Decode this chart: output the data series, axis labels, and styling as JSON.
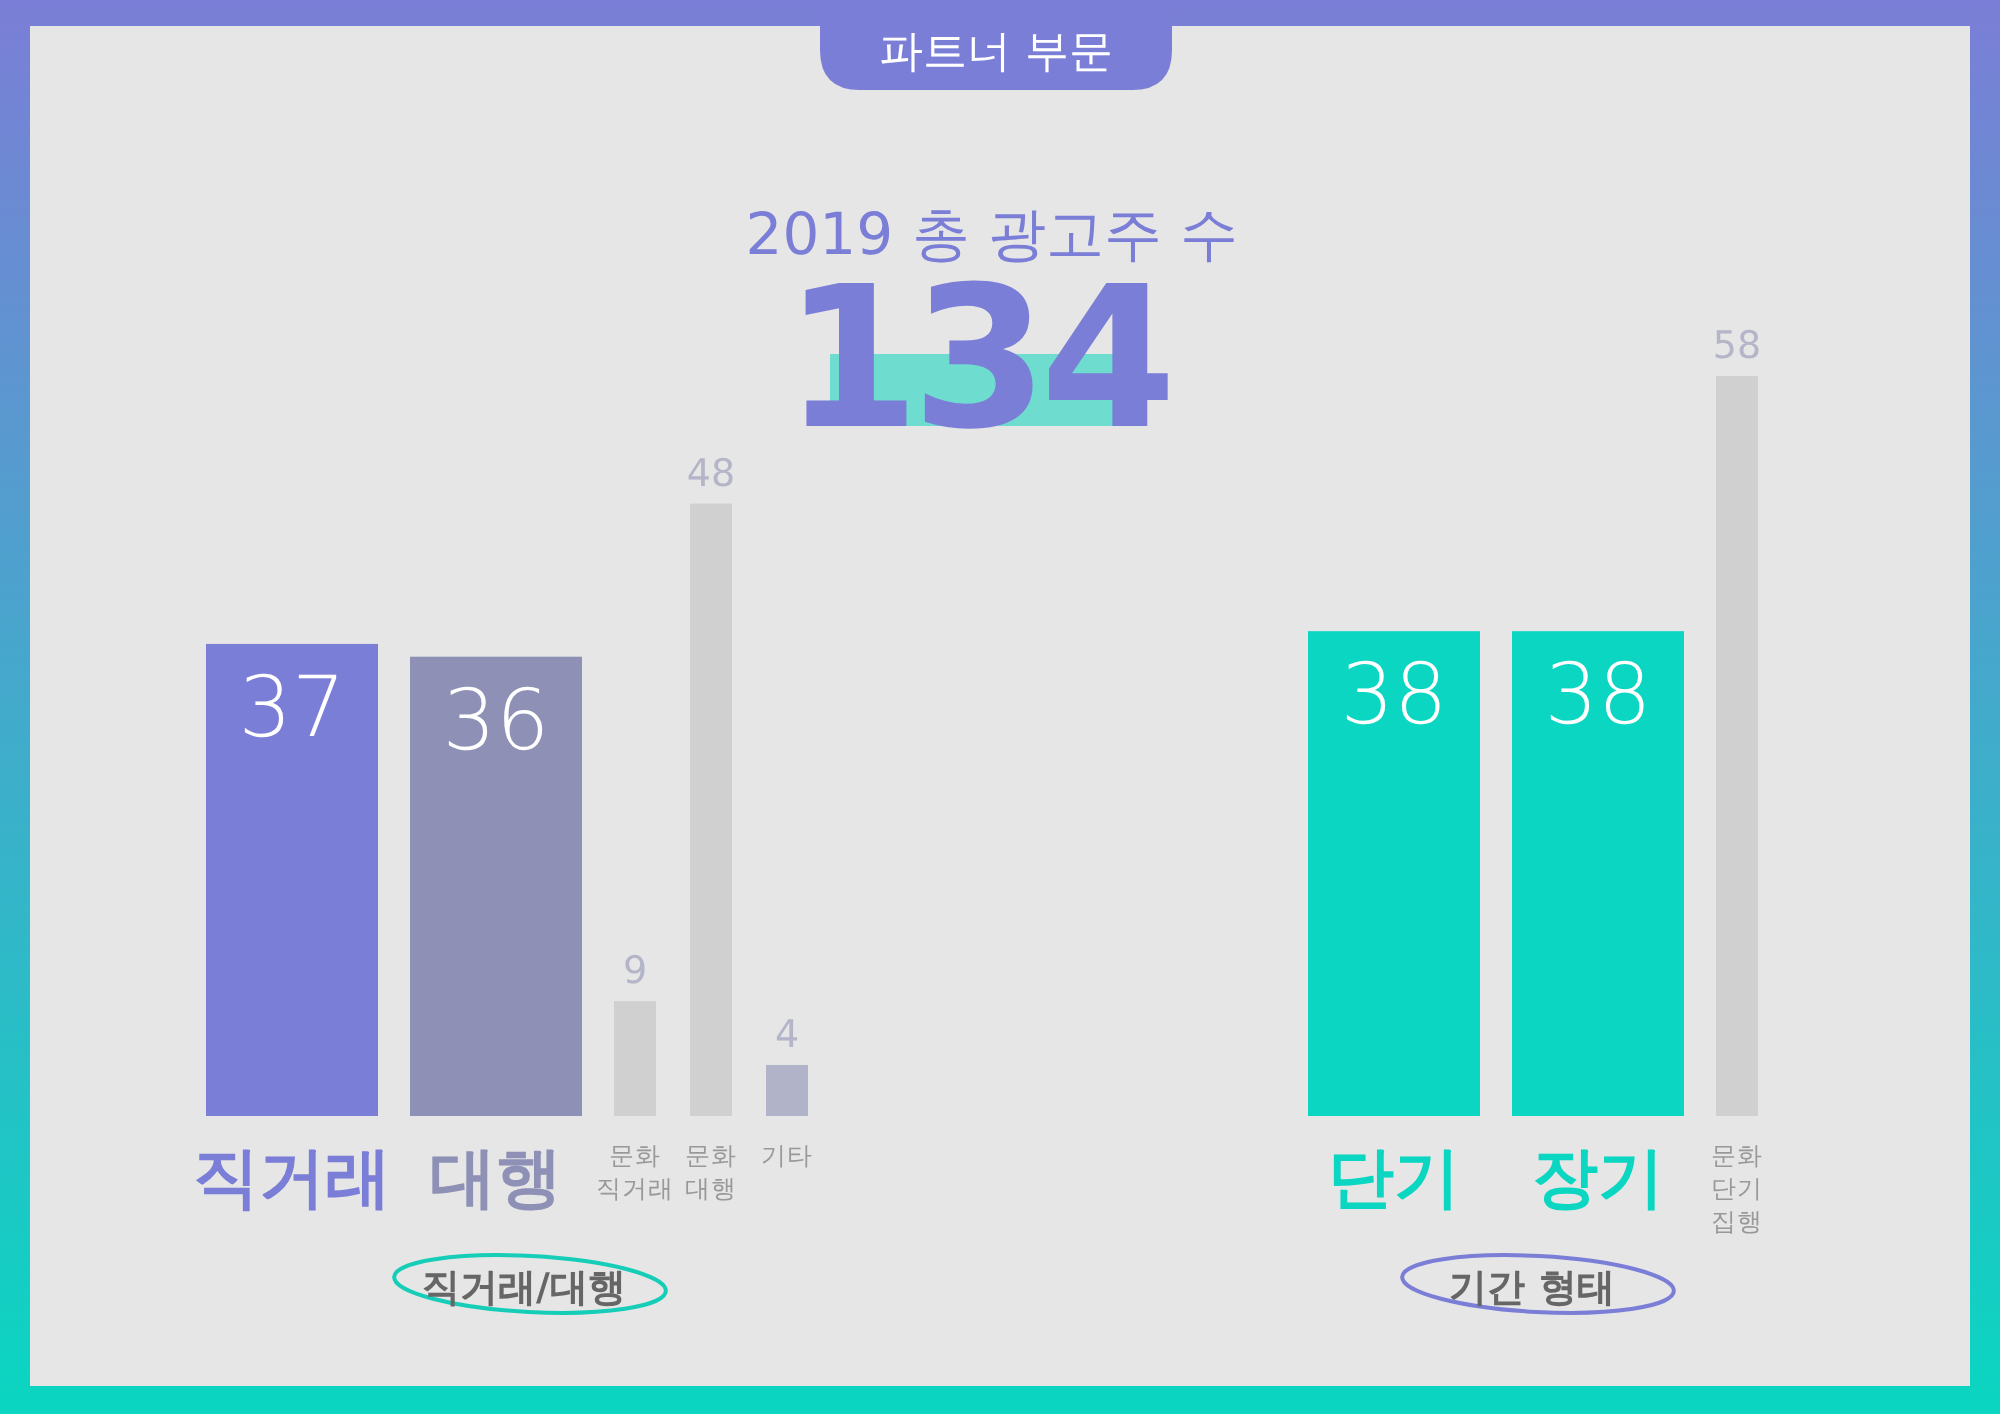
{
  "chart_data": [
    {
      "type": "other",
      "title": "파트너 부문",
      "subtitle": "2019 총 광고주 수",
      "annotations": [
        "134"
      ]
    },
    {
      "type": "bar",
      "xlabel": "직거래/대행",
      "categories": [
        "직거래",
        "대행"
      ],
      "data_labels": true,
      "values": [
        37,
        36
      ],
      "colors": [
        "#7b7ed6",
        "#8e90b6"
      ]
    },
    {
      "type": "bar",
      "categories": [
        "문화 직거래",
        "문화 대행",
        "기타"
      ],
      "data_labels": true,
      "values": [
        9,
        48,
        4
      ],
      "colors": [
        "#d0d0d0",
        "#d0d0d0",
        "#b1b3c9"
      ]
    },
    {
      "type": "bar",
      "xlabel": "기간 형태",
      "categories": [
        "단기",
        "장기"
      ],
      "data_labels": true,
      "values": [
        38,
        38
      ],
      "colors": [
        "#0ad6c1",
        "#0ad6c1"
      ]
    },
    {
      "type": "bar",
      "categories": [
        "문화 단기 집행"
      ],
      "data_labels": true,
      "values": [
        58
      ],
      "colors": [
        "#d0d0d0"
      ]
    }
  ]
}
